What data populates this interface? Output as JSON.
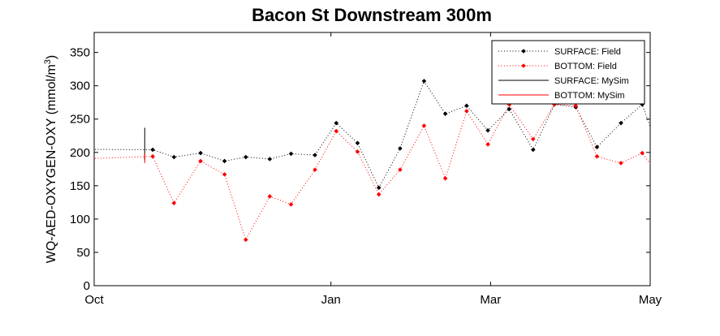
{
  "chart_data": {
    "type": "line",
    "title": "Bacon St Downstream 300m",
    "ylabel": "WQ-AED-OXYGEN-OXY (mmol/m",
    "ylabel_superscript": "3",
    "ylabel_close": ")",
    "ylim": [
      0,
      380
    ],
    "yticks": [
      0,
      50,
      100,
      150,
      200,
      250,
      300,
      350
    ],
    "xlim": [
      "Oct",
      "May"
    ],
    "xticks": [
      {
        "label": "Oct",
        "day": 0
      },
      {
        "label": "Jan",
        "day": 89
      },
      {
        "label": "Mar",
        "day": 149
      },
      {
        "label": "May",
        "day": 209
      }
    ],
    "grid": false,
    "legend_position": "top-right",
    "colors": {
      "surface": "#000000",
      "bottom": "#ff0000"
    },
    "series": [
      {
        "name": "SURFACE: Field",
        "style": "dotted-markers",
        "color": "#000000",
        "points": [
          [
            -20,
            205
          ],
          [
            22,
            204
          ],
          [
            30,
            193
          ],
          [
            40,
            199
          ],
          [
            49,
            187
          ],
          [
            57,
            193
          ],
          [
            66,
            190
          ],
          [
            74,
            198
          ],
          [
            83,
            196
          ],
          [
            91,
            244
          ],
          [
            99,
            214
          ],
          [
            107,
            147
          ],
          [
            115,
            206
          ],
          [
            124,
            307
          ],
          [
            132,
            258
          ],
          [
            140,
            270
          ],
          [
            148,
            233
          ],
          [
            156,
            265
          ],
          [
            165,
            204
          ],
          [
            173,
            272
          ],
          [
            181,
            268
          ],
          [
            189,
            208
          ],
          [
            198,
            244
          ],
          [
            206,
            272
          ],
          [
            214,
            184
          ],
          [
            222,
            257
          ],
          [
            230,
            207
          ],
          [
            240,
            226
          ]
        ]
      },
      {
        "name": "BOTTOM: Field",
        "style": "dotted-markers",
        "color": "#ff0000",
        "points": [
          [
            -20,
            188
          ],
          [
            22,
            194
          ],
          [
            30,
            124
          ],
          [
            40,
            187
          ],
          [
            49,
            167
          ],
          [
            57,
            69
          ],
          [
            66,
            134
          ],
          [
            74,
            122
          ],
          [
            83,
            174
          ],
          [
            91,
            232
          ],
          [
            99,
            201
          ],
          [
            107,
            137
          ],
          [
            115,
            174
          ],
          [
            124,
            240
          ],
          [
            132,
            161
          ],
          [
            140,
            262
          ],
          [
            148,
            212
          ],
          [
            156,
            272
          ],
          [
            165,
            220
          ],
          [
            173,
            272
          ],
          [
            181,
            270
          ],
          [
            189,
            194
          ],
          [
            198,
            184
          ],
          [
            206,
            199
          ],
          [
            214,
            156
          ],
          [
            222,
            203
          ],
          [
            230,
            200
          ],
          [
            240,
            214
          ]
        ]
      },
      {
        "name": "SURFACE: MySim",
        "style": "solid",
        "color": "#000000",
        "points": [
          [
            19,
            188
          ],
          [
            19,
            237
          ]
        ]
      },
      {
        "name": "BOTTOM: MySim",
        "style": "solid",
        "color": "#ff0000",
        "points": [
          [
            19,
            184
          ],
          [
            19,
            199
          ]
        ]
      }
    ]
  }
}
